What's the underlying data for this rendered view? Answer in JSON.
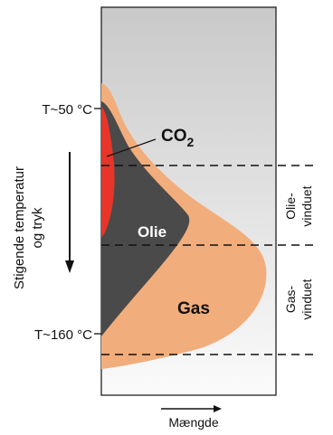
{
  "diagram": {
    "temperature_top": "T~50 °C",
    "temperature_bottom": "T~160 °C",
    "depth_axis_label_line1": "Stigende temperatur",
    "depth_axis_label_line2": "og tryk",
    "x_axis_label": "Mængde",
    "co2_label": "CO",
    "co2_subscript": "2",
    "oil_label": "Olie",
    "gas_label": "Gas",
    "oil_window_line1": "Olie-",
    "oil_window_line2": "vinduet",
    "gas_window_line1": "Gas-",
    "gas_window_line2": "vinduet"
  },
  "colors": {
    "panel_gradient_top": "#c9c9c9",
    "panel_gradient_bottom": "#fbfbfb",
    "co2": "#e8352a",
    "oil": "#4a4a4a",
    "gas": "#f2ad7c",
    "dash": "#111111"
  }
}
